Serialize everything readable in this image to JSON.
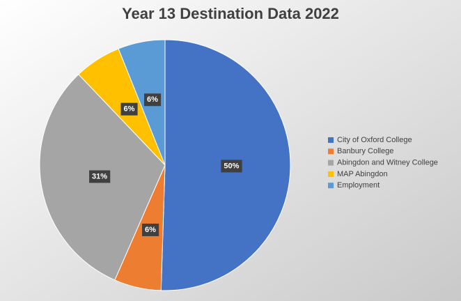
{
  "chart_data": {
    "type": "pie",
    "title": "Year 13 Destination Data 2022",
    "categories": [
      "City of Oxford College",
      "Banbury College",
      "Abingdon and Witney College",
      "MAP Abingdon",
      "Employment"
    ],
    "values": [
      50,
      6,
      31,
      6,
      6
    ],
    "value_labels": [
      "50%",
      "6%",
      "31%",
      "6%",
      "6%"
    ],
    "colors": [
      "#4472c4",
      "#ed7d31",
      "#a5a5a5",
      "#ffc000",
      "#5b9bd5"
    ],
    "legend": "right"
  }
}
